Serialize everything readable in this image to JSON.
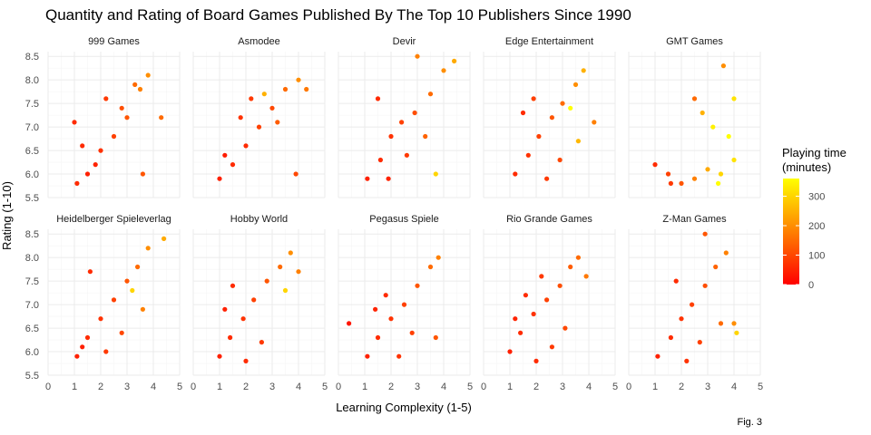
{
  "chart_data": {
    "type": "scatter",
    "title": "Quantity and Rating of Board Games Published By The Top 10 Publishers Since 1990",
    "xlabel": "Learning Complexity (1-5)",
    "ylabel": "Rating (1-10)",
    "caption": "Fig. 3",
    "xlim": [
      0,
      5
    ],
    "ylim": [
      5.5,
      8.6
    ],
    "x_ticks": [
      0,
      1,
      2,
      3,
      4,
      5
    ],
    "y_ticks": [
      5.5,
      6.0,
      6.5,
      7.0,
      7.5,
      8.0,
      8.5
    ],
    "x_tick_labels": [
      "0",
      "1",
      "2",
      "3",
      "4",
      "5"
    ],
    "y_tick_labels": [
      "5.5",
      "6.0",
      "6.5",
      "7.0",
      "7.5",
      "8.0",
      "8.5"
    ],
    "grid": true,
    "color_scale": {
      "title": "Playing time\n(minutes)",
      "min": 0,
      "max": 360,
      "low_color": "#ff0000",
      "high_color": "#ffff00",
      "ticks": [
        0,
        100,
        200,
        300
      ],
      "tick_labels": [
        "0",
        "100",
        "200",
        "300"
      ],
      "legend_position": "right"
    },
    "facets": [
      {
        "name": "999 Games",
        "points": [
          [
            1.1,
            5.8,
            60
          ],
          [
            1.5,
            6.0,
            45
          ],
          [
            2.0,
            6.5,
            70
          ],
          [
            2.5,
            6.8,
            90
          ],
          [
            3.0,
            7.2,
            120
          ],
          [
            3.5,
            7.8,
            180
          ],
          [
            3.8,
            8.1,
            200
          ],
          [
            4.3,
            7.2,
            150
          ],
          [
            3.6,
            6.0,
            120
          ],
          [
            1.0,
            7.1,
            60
          ],
          [
            2.2,
            7.6,
            80
          ],
          [
            2.8,
            7.4,
            110
          ],
          [
            1.8,
            6.2,
            50
          ],
          [
            1.3,
            6.6,
            60
          ],
          [
            3.3,
            7.9,
            150
          ]
        ]
      },
      {
        "name": "Asmodee",
        "points": [
          [
            1.0,
            5.9,
            45
          ],
          [
            1.5,
            6.2,
            60
          ],
          [
            2.0,
            6.6,
            60
          ],
          [
            2.5,
            7.0,
            90
          ],
          [
            3.0,
            7.4,
            100
          ],
          [
            3.5,
            7.8,
            150
          ],
          [
            4.3,
            7.8,
            170
          ],
          [
            4.0,
            8.0,
            200
          ],
          [
            2.7,
            7.7,
            250
          ],
          [
            3.9,
            6.0,
            100
          ],
          [
            1.8,
            7.2,
            70
          ],
          [
            2.2,
            7.6,
            80
          ],
          [
            1.2,
            6.4,
            40
          ],
          [
            3.2,
            7.1,
            130
          ]
        ]
      },
      {
        "name": "Devir",
        "points": [
          [
            1.1,
            5.9,
            45
          ],
          [
            1.6,
            6.3,
            60
          ],
          [
            2.0,
            6.8,
            70
          ],
          [
            2.4,
            7.1,
            90
          ],
          [
            2.9,
            7.3,
            110
          ],
          [
            3.5,
            7.7,
            150
          ],
          [
            4.0,
            8.2,
            200
          ],
          [
            4.4,
            8.4,
            240
          ],
          [
            3.0,
            8.5,
            180
          ],
          [
            3.7,
            6.0,
            300
          ],
          [
            1.5,
            7.6,
            60
          ],
          [
            2.6,
            6.4,
            80
          ],
          [
            1.9,
            5.9,
            50
          ],
          [
            3.3,
            6.8,
            140
          ]
        ]
      },
      {
        "name": "Edge Entertainment",
        "points": [
          [
            1.2,
            6.0,
            60
          ],
          [
            1.7,
            6.4,
            70
          ],
          [
            2.1,
            6.8,
            90
          ],
          [
            2.6,
            7.2,
            120
          ],
          [
            3.0,
            7.5,
            150
          ],
          [
            3.5,
            7.9,
            200
          ],
          [
            3.8,
            8.2,
            250
          ],
          [
            3.3,
            7.4,
            360
          ],
          [
            4.2,
            7.1,
            180
          ],
          [
            1.5,
            7.3,
            60
          ],
          [
            2.4,
            5.9,
            80
          ],
          [
            2.9,
            6.3,
            100
          ],
          [
            3.6,
            6.7,
            260
          ],
          [
            1.9,
            7.6,
            90
          ]
        ]
      },
      {
        "name": "GMT Games",
        "points": [
          [
            1.0,
            6.2,
            60
          ],
          [
            1.5,
            6.0,
            90
          ],
          [
            2.0,
            5.8,
            120
          ],
          [
            2.5,
            5.9,
            180
          ],
          [
            3.0,
            6.1,
            240
          ],
          [
            3.5,
            6.0,
            300
          ],
          [
            4.0,
            6.3,
            320
          ],
          [
            3.8,
            6.8,
            360
          ],
          [
            3.2,
            7.0,
            340
          ],
          [
            2.8,
            7.3,
            250
          ],
          [
            3.6,
            8.3,
            200
          ],
          [
            2.5,
            7.6,
            150
          ],
          [
            4.0,
            7.6,
            320
          ],
          [
            3.4,
            5.8,
            360
          ],
          [
            1.6,
            5.8,
            80
          ]
        ]
      },
      {
        "name": "Heidelberger Spieleverlag",
        "points": [
          [
            1.1,
            5.9,
            45
          ],
          [
            1.5,
            6.3,
            60
          ],
          [
            2.0,
            6.7,
            70
          ],
          [
            2.5,
            7.1,
            90
          ],
          [
            3.0,
            7.5,
            120
          ],
          [
            3.4,
            7.8,
            150
          ],
          [
            3.8,
            8.2,
            200
          ],
          [
            4.4,
            8.4,
            240
          ],
          [
            3.2,
            7.3,
            300
          ],
          [
            1.6,
            7.7,
            60
          ],
          [
            2.2,
            6.0,
            80
          ],
          [
            2.8,
            6.4,
            100
          ],
          [
            3.6,
            6.9,
            180
          ],
          [
            1.3,
            6.1,
            45
          ]
        ]
      },
      {
        "name": "Hobby World",
        "points": [
          [
            1.0,
            5.9,
            45
          ],
          [
            1.4,
            6.3,
            60
          ],
          [
            1.9,
            6.7,
            70
          ],
          [
            2.3,
            7.1,
            90
          ],
          [
            2.8,
            7.5,
            120
          ],
          [
            3.3,
            7.8,
            150
          ],
          [
            3.7,
            8.1,
            200
          ],
          [
            4.0,
            7.7,
            180
          ],
          [
            3.5,
            7.3,
            300
          ],
          [
            1.5,
            7.4,
            60
          ],
          [
            2.0,
            5.8,
            60
          ],
          [
            2.6,
            6.2,
            80
          ],
          [
            1.2,
            6.9,
            45
          ]
        ]
      },
      {
        "name": "Pegasus Spiele",
        "points": [
          [
            0.4,
            6.6,
            30
          ],
          [
            1.1,
            5.9,
            45
          ],
          [
            1.5,
            6.3,
            60
          ],
          [
            2.0,
            6.7,
            70
          ],
          [
            2.5,
            7.0,
            90
          ],
          [
            3.0,
            7.4,
            120
          ],
          [
            3.5,
            7.8,
            150
          ],
          [
            3.8,
            8.0,
            180
          ],
          [
            3.7,
            6.3,
            120
          ],
          [
            1.8,
            7.2,
            60
          ],
          [
            2.3,
            5.9,
            70
          ],
          [
            2.8,
            6.4,
            90
          ],
          [
            1.4,
            6.9,
            50
          ]
        ]
      },
      {
        "name": "Rio Grande Games",
        "points": [
          [
            1.0,
            6.0,
            45
          ],
          [
            1.4,
            6.4,
            60
          ],
          [
            1.9,
            6.8,
            70
          ],
          [
            2.4,
            7.1,
            90
          ],
          [
            2.9,
            7.4,
            110
          ],
          [
            3.3,
            7.8,
            130
          ],
          [
            3.6,
            8.0,
            150
          ],
          [
            3.9,
            7.6,
            170
          ],
          [
            2.0,
            5.8,
            60
          ],
          [
            2.6,
            6.1,
            80
          ],
          [
            3.1,
            6.5,
            100
          ],
          [
            1.6,
            7.2,
            60
          ],
          [
            2.2,
            7.6,
            80
          ],
          [
            1.2,
            6.7,
            50
          ]
        ]
      },
      {
        "name": "Z-Man Games",
        "points": [
          [
            1.1,
            5.9,
            45
          ],
          [
            1.6,
            6.3,
            60
          ],
          [
            2.0,
            6.7,
            70
          ],
          [
            2.4,
            7.0,
            90
          ],
          [
            2.9,
            7.4,
            110
          ],
          [
            3.3,
            7.8,
            140
          ],
          [
            3.7,
            8.1,
            180
          ],
          [
            4.1,
            6.4,
            300
          ],
          [
            4.0,
            6.6,
            200
          ],
          [
            2.9,
            8.5,
            120
          ],
          [
            1.8,
            7.5,
            60
          ],
          [
            2.2,
            5.8,
            70
          ],
          [
            2.7,
            6.2,
            90
          ],
          [
            3.5,
            6.6,
            150
          ]
        ]
      }
    ]
  }
}
